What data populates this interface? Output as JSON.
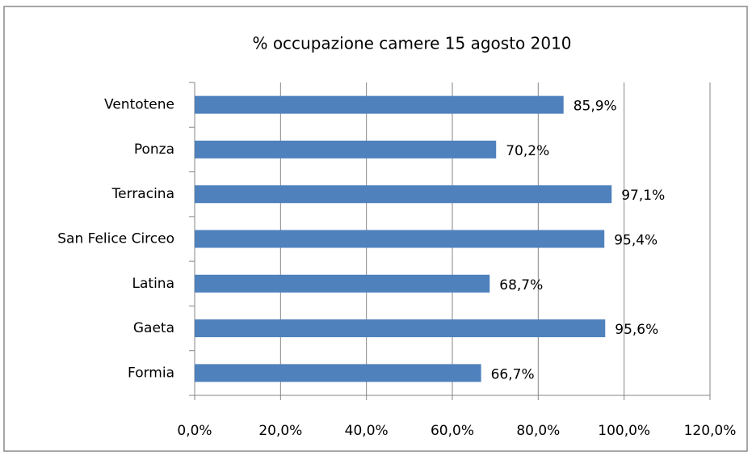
{
  "chart_data": {
    "type": "hbar",
    "title": "% occupazione camere 15 agosto 2010",
    "categories": [
      "Ventotene",
      "Ponza",
      "Terracina",
      "San Felice Circeo",
      "Latina",
      "Gaeta",
      "Formia"
    ],
    "values": [
      85.9,
      70.2,
      97.1,
      95.4,
      68.7,
      95.6,
      66.7
    ],
    "value_labels": [
      "85,9%",
      "70,2%",
      "97,1%",
      "95,4%",
      "68,7%",
      "95,6%",
      "66,7%"
    ],
    "color": "#4f81bd",
    "xlim": [
      0,
      120
    ],
    "xticks": [
      {
        "value": 0,
        "label": "0,0%"
      },
      {
        "value": 20,
        "label": "20,0%"
      },
      {
        "value": 40,
        "label": "40,0%"
      },
      {
        "value": 60,
        "label": "60,0%"
      },
      {
        "value": 80,
        "label": "80,0%"
      },
      {
        "value": 100,
        "label": "100,0%"
      },
      {
        "value": 120,
        "label": "120,0%"
      }
    ],
    "grid": true
  }
}
